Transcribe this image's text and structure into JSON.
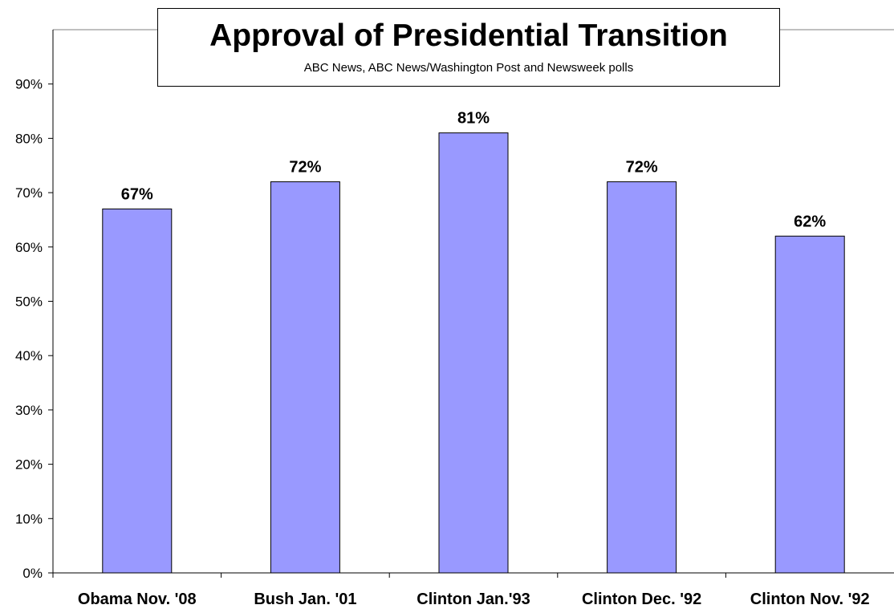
{
  "chart_data": {
    "type": "bar",
    "title": "Approval of Presidential Transition",
    "subtitle": "ABC News, ABC News/Washington Post and Newsweek polls",
    "categories": [
      "Obama Nov. '08",
      "Bush Jan. '01",
      "Clinton Jan.'93",
      "Clinton Dec. '92",
      "Clinton Nov. '92"
    ],
    "values": [
      67,
      72,
      81,
      72,
      62
    ],
    "data_labels": [
      "67%",
      "72%",
      "81%",
      "72%",
      "62%"
    ],
    "ylim": [
      0,
      100
    ],
    "yticks": [
      0,
      10,
      20,
      30,
      40,
      50,
      60,
      70,
      80,
      90
    ],
    "ytick_labels": [
      "0%",
      "10%",
      "20%",
      "30%",
      "40%",
      "50%",
      "60%",
      "70%",
      "80%",
      "90%"
    ],
    "xlabel": "",
    "ylabel": "",
    "grid": false,
    "legend": false,
    "bar_color": "#9999ff"
  }
}
